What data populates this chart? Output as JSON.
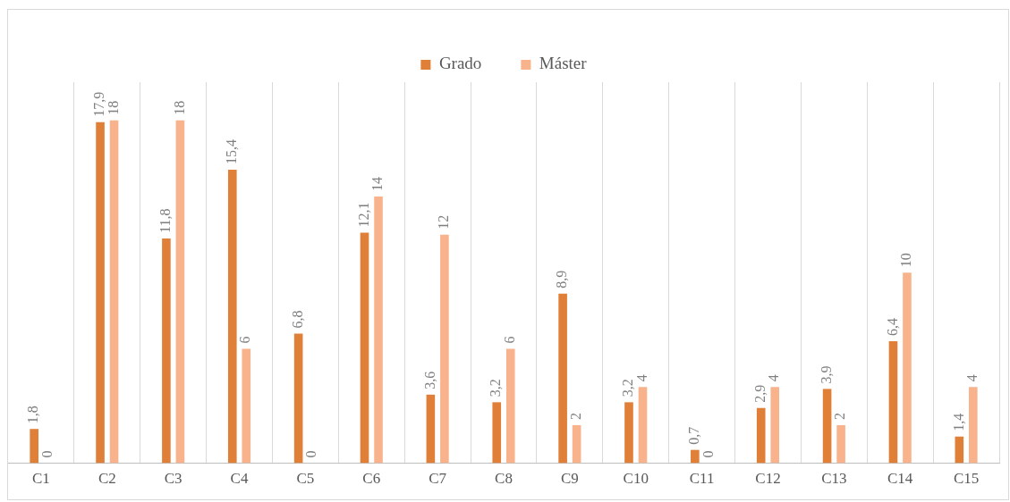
{
  "chart_data": {
    "type": "bar",
    "categories": [
      "C1",
      "C2",
      "C3",
      "C4",
      "C5",
      "C6",
      "C7",
      "C8",
      "C9",
      "C10",
      "C11",
      "C12",
      "C13",
      "C14",
      "C15"
    ],
    "series": [
      {
        "name": "Grado",
        "color": "#e07f38",
        "values": [
          1.8,
          17.9,
          11.8,
          15.4,
          6.8,
          12.1,
          3.6,
          3.2,
          8.9,
          3.2,
          0.7,
          2.9,
          3.9,
          6.4,
          1.4
        ],
        "value_labels": [
          "1,8",
          "17,9",
          "11,8",
          "15,4",
          "6,8",
          "12,1",
          "3,6",
          "3,2",
          "8,9",
          "3,2",
          "0,7",
          "2,9",
          "3,9",
          "6,4",
          "1,4"
        ]
      },
      {
        "name": "Máster",
        "color": "#f8b38c",
        "values": [
          0,
          18,
          18,
          6,
          0,
          14,
          12,
          6,
          2,
          4,
          0,
          4,
          2,
          10,
          4
        ],
        "value_labels": [
          "0",
          "18",
          "18",
          "6",
          "0",
          "14",
          "12",
          "6",
          "2",
          "4",
          "0",
          "4",
          "2",
          "10",
          "4"
        ]
      }
    ],
    "tick_labels": "x",
    "grid": "x",
    "legend": "top"
  }
}
